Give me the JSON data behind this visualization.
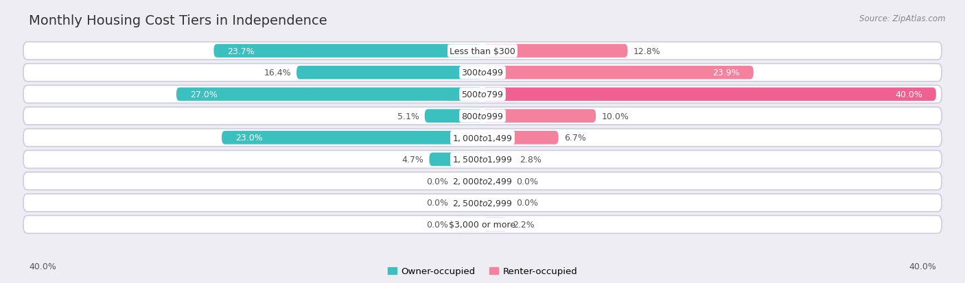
{
  "title": "Monthly Housing Cost Tiers in Independence",
  "source": "Source: ZipAtlas.com",
  "categories": [
    "Less than $300",
    "$300 to $499",
    "$500 to $799",
    "$800 to $999",
    "$1,000 to $1,499",
    "$1,500 to $1,999",
    "$2,000 to $2,499",
    "$2,500 to $2,999",
    "$3,000 or more"
  ],
  "owner_values": [
    23.7,
    16.4,
    27.0,
    5.1,
    23.0,
    4.7,
    0.0,
    0.0,
    0.0
  ],
  "renter_values": [
    12.8,
    23.9,
    40.0,
    10.0,
    6.7,
    2.8,
    0.0,
    0.0,
    2.2
  ],
  "owner_color": "#3bbfbf",
  "renter_color": "#f4829e",
  "axis_max": 40.0,
  "background_color": "#ededf3",
  "bar_height": 0.62,
  "title_fontsize": 14,
  "label_fontsize": 9,
  "category_fontsize": 9,
  "legend_fontsize": 9.5,
  "source_fontsize": 8.5
}
